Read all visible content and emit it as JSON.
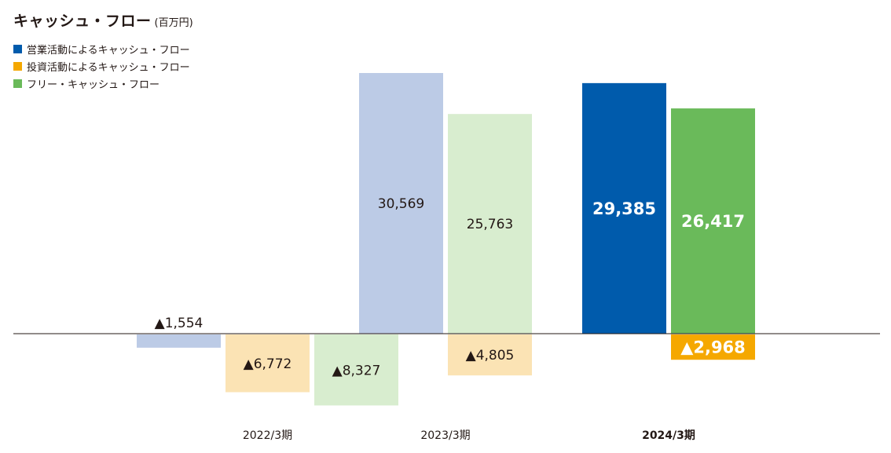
{
  "title": "キャッシュ・フロー",
  "unit": "(百万円)",
  "legend": [
    {
      "label": "営業活動によるキャッシュ・フロー",
      "color": "#005bac"
    },
    {
      "label": "投資活動によるキャッシュ・フロー",
      "color": "#f5a800"
    },
    {
      "label": "フリー・キャッシュ・フロー",
      "color": "#6aba5a"
    }
  ],
  "chart_data": {
    "type": "bar",
    "title": "キャッシュ・フロー",
    "unit": "(百万円)",
    "categories": [
      "2022/3期",
      "2023/3期",
      "2024/3期"
    ],
    "highlight_category": "2024/3期",
    "negative_marker": "▲",
    "series": [
      {
        "name": "営業活動によるキャッシュ・フロー",
        "color": "#005bac",
        "faded_color": "#bccbe6",
        "values": [
          -1554,
          30569,
          29385
        ],
        "labels": [
          "▲1,554",
          "30,569",
          "29,385"
        ]
      },
      {
        "name": "投資活動によるキャッシュ・フロー",
        "color": "#f5a800",
        "faded_color": "#fbe3b4",
        "values": [
          -6772,
          -4805,
          -2968
        ],
        "labels": [
          "▲6,772",
          "▲4,805",
          "▲2,968"
        ]
      },
      {
        "name": "フリー・キャッシュ・フロー",
        "color": "#6aba5a",
        "faded_color": "#d8edcf",
        "values": [
          -8327,
          25763,
          26417
        ],
        "labels": [
          "▲8,327",
          "25,763",
          "26,417"
        ]
      }
    ],
    "baseline": 0,
    "grid": false,
    "legend_position": "top-left"
  }
}
